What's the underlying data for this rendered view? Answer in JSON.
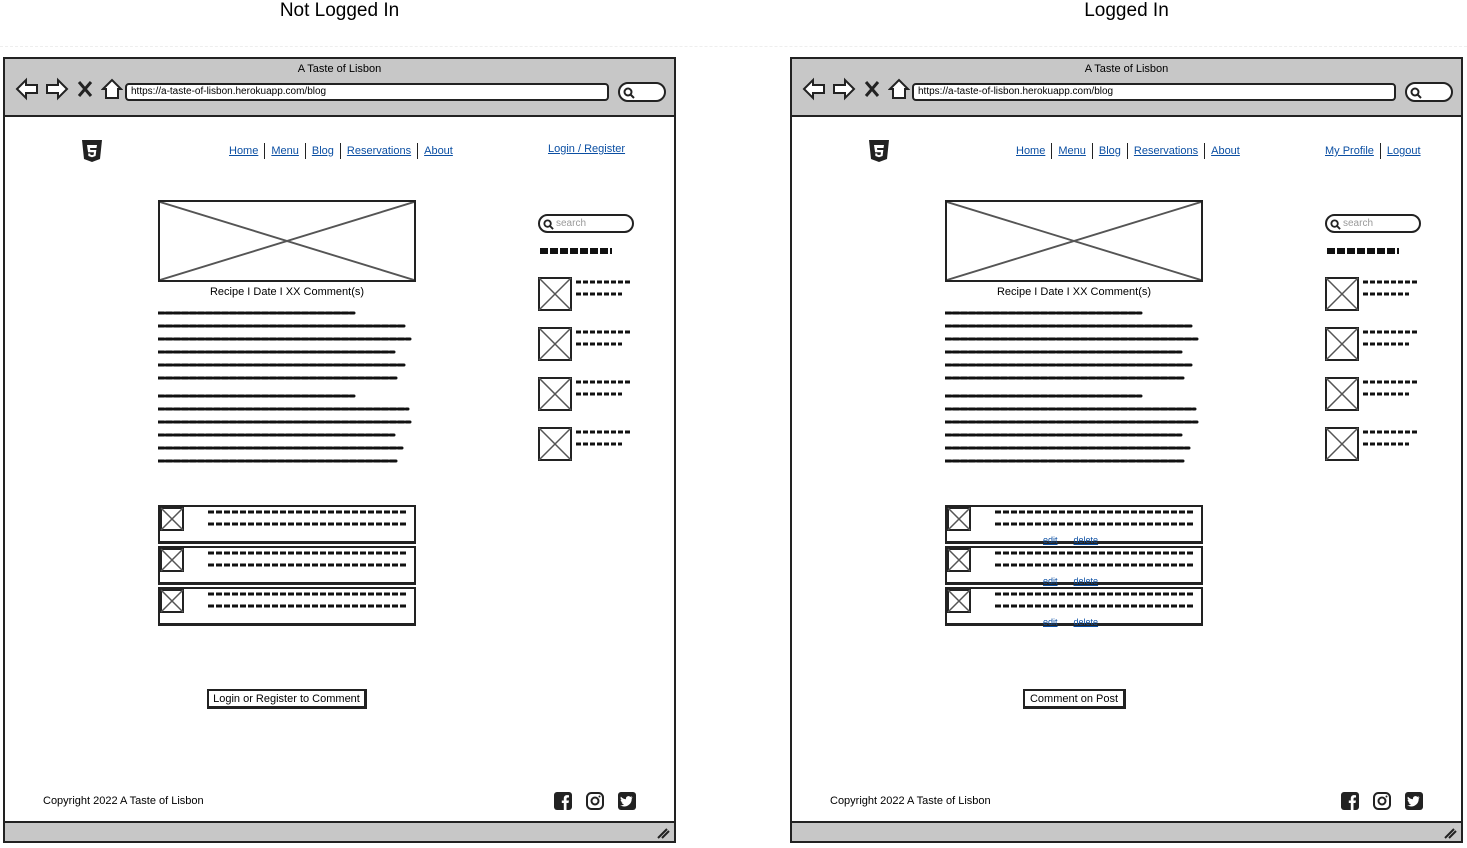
{
  "panels": [
    {
      "id": "not-logged-in",
      "heading": "Not Logged In",
      "window_title": "A Taste of Lisbon",
      "url": "https://a-taste-of-lisbon.herokuapp.com/blog",
      "nav": [
        "Home",
        "Menu",
        "Blog",
        "Reservations",
        "About"
      ],
      "auth_links": [
        "Login / Register"
      ],
      "post_meta": "Recipe I Date I XX Comment(s)",
      "search_placeholder": "search",
      "comment_actions": null,
      "cta_label": "Login or Register to Comment",
      "footer_copyright": "Copyright 2022 A Taste of Lisbon"
    },
    {
      "id": "logged-in",
      "heading": "Logged In",
      "window_title": "A Taste of Lisbon",
      "url": "https://a-taste-of-lisbon.herokuapp.com/blog",
      "nav": [
        "Home",
        "Menu",
        "Blog",
        "Reservations",
        "About"
      ],
      "auth_links": [
        "My Profile",
        "Logout"
      ],
      "post_meta": "Recipe I Date I XX Comment(s)",
      "search_placeholder": "search",
      "comment_actions": [
        "edit",
        "delete"
      ],
      "cta_label": "Comment on Post",
      "footer_copyright": "Copyright 2022 A Taste of Lisbon"
    }
  ],
  "icons": {
    "browser": [
      "back-arrow-icon",
      "forward-arrow-icon",
      "close-x-icon",
      "home-icon",
      "search-icon"
    ],
    "logo": "html5-logo",
    "social": [
      "facebook-icon",
      "instagram-icon",
      "twitter-icon"
    ]
  },
  "colors": {
    "link": "#0b4fa3",
    "chrome": "#c7c7c7",
    "stroke": "#222222"
  }
}
